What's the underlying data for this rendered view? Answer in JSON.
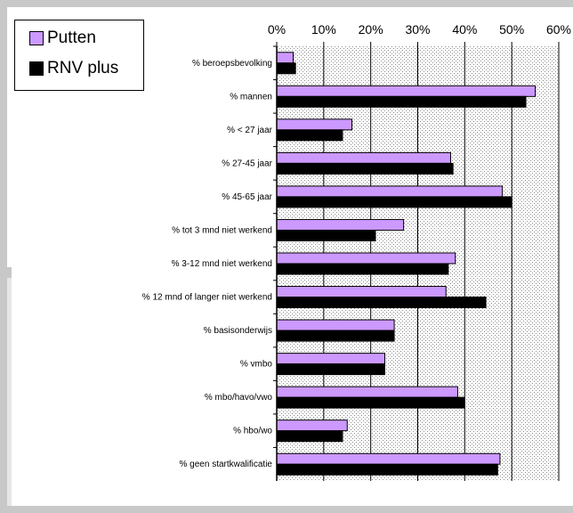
{
  "chart_data": {
    "type": "bar",
    "orientation": "horizontal",
    "categories": [
      "% beroepsbevolking",
      "% mannen",
      "% < 27 jaar",
      "% 27-45 jaar",
      "% 45-65 jaar",
      "% tot 3 mnd niet werkend",
      "% 3-12 mnd niet werkend",
      "% 12 mnd of langer niet werkend",
      "% basisonderwijs",
      "% vmbo",
      "% mbo/havo/vwo",
      "% hbo/wo",
      "% geen startkwalificatie"
    ],
    "series": [
      {
        "name": "Putten",
        "color": "#cc99ff",
        "values": [
          3.5,
          55,
          16,
          37,
          48,
          27,
          38,
          36,
          25,
          23,
          38.5,
          15,
          47.5
        ]
      },
      {
        "name": "RNV plus",
        "color": "#000000",
        "values": [
          4,
          53,
          14,
          37.5,
          50,
          21,
          36.5,
          44.5,
          25,
          23,
          40,
          14,
          47
        ]
      }
    ],
    "xlim": [
      0,
      60
    ],
    "ticks": [
      0,
      10,
      20,
      30,
      40,
      50,
      60
    ],
    "tick_labels": [
      "0%",
      "10%",
      "20%",
      "30%",
      "40%",
      "50%",
      "60%"
    ],
    "xaxis_position": "top",
    "grid": true,
    "legend_position": "top-left",
    "title": "",
    "xlabel": "",
    "ylabel": ""
  }
}
